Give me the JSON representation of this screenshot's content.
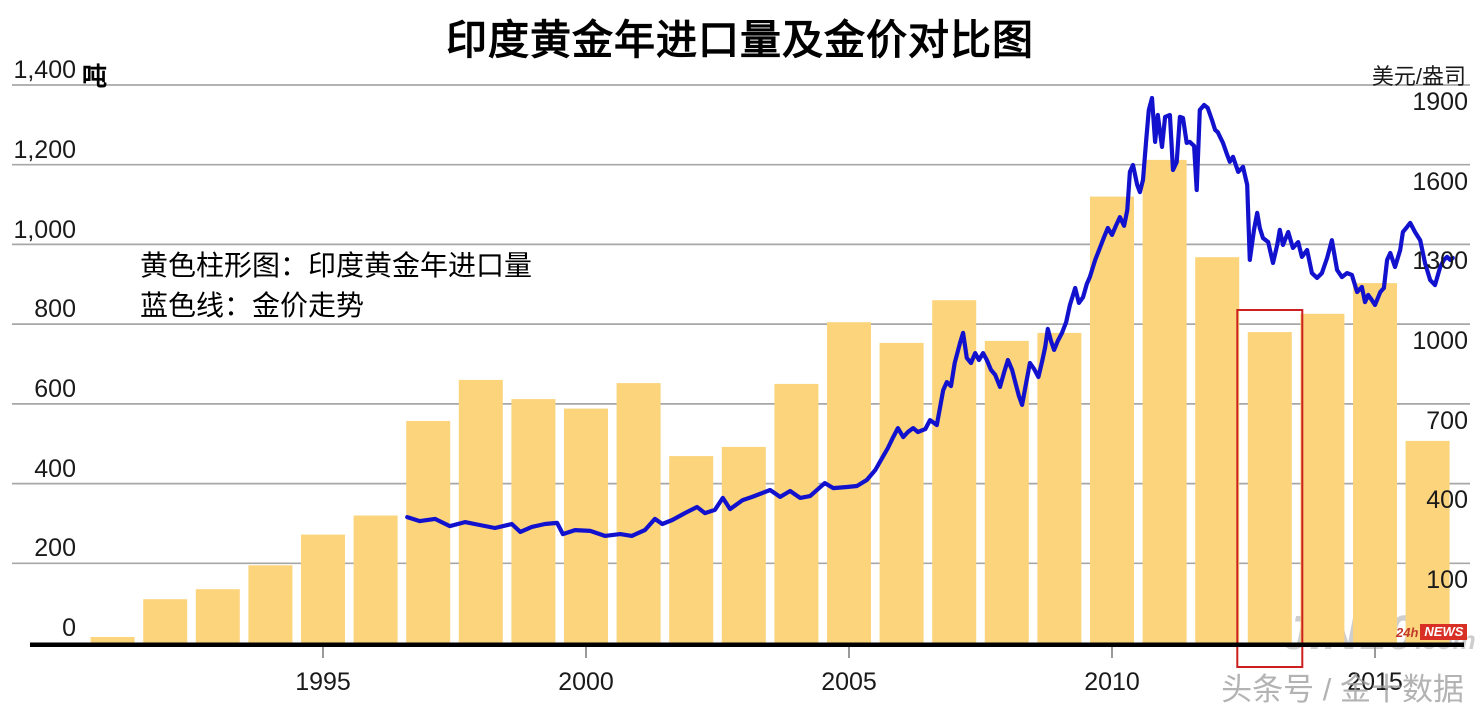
{
  "title": "印度黄金年进口量及金价对比图",
  "left_axis": {
    "unit": "吨",
    "ticks": [
      "1,400",
      "1,200",
      "1,000",
      "800",
      "600",
      "400",
      "200",
      "0"
    ]
  },
  "right_axis": {
    "unit": "美元/盎司",
    "ticks": [
      "1900",
      "1600",
      "1300",
      "1000",
      "700",
      "400",
      "100"
    ]
  },
  "x_axis": {
    "labels": [
      "1995",
      "2000",
      "2005",
      "2010",
      "2015"
    ]
  },
  "legend": {
    "bar_label": "黄色柱形图：印度黄金年进口量",
    "line_label": "蓝色线：金价走势"
  },
  "watermark": {
    "brand": "JIN10",
    "domain": ".com",
    "badge_hours": "24h",
    "badge_news": "NEWS",
    "caption": "头条号 / 金十数据"
  },
  "colors": {
    "bar": "#FBD47C",
    "line": "#1212CE",
    "grid": "#A7A7A7",
    "axis": "#000000",
    "highlight": "#CC2020",
    "watermark": "#C3C3C3"
  },
  "chart_data": {
    "type": "bar+line dual-axis",
    "title": "印度黄金年进口量及金价对比图",
    "bar_series": {
      "name": "印度黄金年进口量",
      "unit": "吨",
      "categories": [
        1991,
        1992,
        1993,
        1994,
        1995,
        1996,
        1997,
        1998,
        1999,
        2000,
        2001,
        2002,
        2003,
        2004,
        2005,
        2006,
        2007,
        2008,
        2009,
        2010,
        2011,
        2012,
        2013,
        2014,
        2015,
        2016
      ],
      "values": [
        15,
        110,
        135,
        195,
        272,
        320,
        557,
        660,
        612,
        588,
        652,
        469,
        492,
        650,
        805,
        753,
        860,
        758,
        778,
        1120,
        1212,
        968,
        780,
        826,
        903,
        507
      ]
    },
    "line_series": {
      "name": "金价走势",
      "unit": "美元/盎司",
      "points": [
        [
          1996.6,
          274
        ],
        [
          1996.84,
          259
        ],
        [
          1997.13,
          267
        ],
        [
          1997.41,
          240
        ],
        [
          1997.7,
          255
        ],
        [
          1997.98,
          244
        ],
        [
          1998.27,
          233
        ],
        [
          1998.59,
          248
        ],
        [
          1998.75,
          218
        ],
        [
          1998.97,
          237
        ],
        [
          1999.22,
          248
        ],
        [
          1999.45,
          252
        ],
        [
          1999.56,
          210
        ],
        [
          1999.79,
          225
        ],
        [
          2000.08,
          222
        ],
        [
          2000.36,
          203
        ],
        [
          2000.65,
          210
        ],
        [
          2000.87,
          203
        ],
        [
          2001.12,
          225
        ],
        [
          2001.31,
          267
        ],
        [
          2001.45,
          248
        ],
        [
          2001.64,
          263
        ],
        [
          2001.88,
          289
        ],
        [
          2002.11,
          312
        ],
        [
          2002.26,
          289
        ],
        [
          2002.45,
          301
        ],
        [
          2002.6,
          346
        ],
        [
          2002.74,
          304
        ],
        [
          2002.98,
          338
        ],
        [
          2003.16,
          350
        ],
        [
          2003.31,
          361
        ],
        [
          2003.5,
          376
        ],
        [
          2003.69,
          350
        ],
        [
          2003.88,
          372
        ],
        [
          2004.07,
          346
        ],
        [
          2004.26,
          353
        ],
        [
          2004.54,
          402
        ],
        [
          2004.7,
          383
        ],
        [
          2004.96,
          387
        ],
        [
          2005.15,
          391
        ],
        [
          2005.34,
          414
        ],
        [
          2005.5,
          451
        ],
        [
          2005.63,
          496
        ],
        [
          2005.74,
          534
        ],
        [
          2005.84,
          575
        ],
        [
          2005.93,
          609
        ],
        [
          2006.03,
          575
        ],
        [
          2006.12,
          594
        ],
        [
          2006.22,
          609
        ],
        [
          2006.31,
          594
        ],
        [
          2006.45,
          605
        ],
        [
          2006.54,
          639
        ],
        [
          2006.67,
          620
        ],
        [
          2006.79,
          752
        ],
        [
          2006.86,
          782
        ],
        [
          2006.94,
          767
        ],
        [
          2007.01,
          854
        ],
        [
          2007.11,
          929
        ],
        [
          2007.17,
          967
        ],
        [
          2007.24,
          873
        ],
        [
          2007.32,
          854
        ],
        [
          2007.4,
          891
        ],
        [
          2007.47,
          865
        ],
        [
          2007.55,
          891
        ],
        [
          2007.62,
          865
        ],
        [
          2007.7,
          828
        ],
        [
          2007.78,
          809
        ],
        [
          2007.87,
          764
        ],
        [
          2007.95,
          820
        ],
        [
          2008.02,
          865
        ],
        [
          2008.1,
          828
        ],
        [
          2008.17,
          775
        ],
        [
          2008.23,
          730
        ],
        [
          2008.29,
          696
        ],
        [
          2008.37,
          782
        ],
        [
          2008.44,
          854
        ],
        [
          2008.52,
          831
        ],
        [
          2008.6,
          801
        ],
        [
          2008.67,
          858
        ],
        [
          2008.73,
          914
        ],
        [
          2008.78,
          982
        ],
        [
          2008.84,
          937
        ],
        [
          2008.9,
          903
        ],
        [
          2008.97,
          937
        ],
        [
          2009.05,
          967
        ],
        [
          2009.13,
          1008
        ],
        [
          2009.2,
          1072
        ],
        [
          2009.3,
          1136
        ],
        [
          2009.37,
          1080
        ],
        [
          2009.45,
          1102
        ],
        [
          2009.52,
          1151
        ],
        [
          2009.58,
          1178
        ],
        [
          2009.68,
          1242
        ],
        [
          2009.77,
          1287
        ],
        [
          2009.85,
          1328
        ],
        [
          2009.92,
          1362
        ],
        [
          2010.0,
          1336
        ],
        [
          2010.08,
          1373
        ],
        [
          2010.15,
          1403
        ],
        [
          2010.23,
          1370
        ],
        [
          2010.29,
          1430
        ],
        [
          2010.34,
          1573
        ],
        [
          2010.4,
          1599
        ],
        [
          2010.48,
          1524
        ],
        [
          2010.53,
          1497
        ],
        [
          2010.59,
          1543
        ],
        [
          2010.65,
          1693
        ],
        [
          2010.7,
          1806
        ],
        [
          2010.76,
          1851
        ],
        [
          2010.82,
          1686
        ],
        [
          2010.87,
          1787
        ],
        [
          2010.95,
          1667
        ],
        [
          2011.01,
          1780
        ],
        [
          2011.1,
          1787
        ],
        [
          2011.16,
          1580
        ],
        [
          2011.23,
          1610
        ],
        [
          2011.29,
          1780
        ],
        [
          2011.35,
          1776
        ],
        [
          2011.42,
          1682
        ],
        [
          2011.48,
          1686
        ],
        [
          2011.56,
          1671
        ],
        [
          2011.61,
          1505
        ],
        [
          2011.67,
          1806
        ],
        [
          2011.75,
          1825
        ],
        [
          2011.82,
          1814
        ],
        [
          2011.9,
          1769
        ],
        [
          2011.96,
          1731
        ],
        [
          2012.01,
          1723
        ],
        [
          2012.11,
          1682
        ],
        [
          2012.19,
          1637
        ],
        [
          2012.24,
          1611
        ],
        [
          2012.3,
          1630
        ],
        [
          2012.4,
          1573
        ],
        [
          2012.49,
          1592
        ],
        [
          2012.57,
          1524
        ],
        [
          2012.62,
          1242
        ],
        [
          2012.7,
          1355
        ],
        [
          2012.76,
          1419
        ],
        [
          2012.81,
          1362
        ],
        [
          2012.87,
          1324
        ],
        [
          2012.97,
          1309
        ],
        [
          2013.06,
          1230
        ],
        [
          2013.14,
          1298
        ],
        [
          2013.19,
          1355
        ],
        [
          2013.25,
          1298
        ],
        [
          2013.35,
          1347
        ],
        [
          2013.44,
          1287
        ],
        [
          2013.54,
          1309
        ],
        [
          2013.61,
          1253
        ],
        [
          2013.71,
          1279
        ],
        [
          2013.8,
          1192
        ],
        [
          2013.9,
          1174
        ],
        [
          2013.99,
          1192
        ],
        [
          2014.09,
          1249
        ],
        [
          2014.18,
          1316
        ],
        [
          2014.28,
          1204
        ],
        [
          2014.37,
          1177
        ],
        [
          2014.47,
          1192
        ],
        [
          2014.56,
          1185
        ],
        [
          2014.66,
          1121
        ],
        [
          2014.75,
          1140
        ],
        [
          2014.81,
          1083
        ],
        [
          2014.87,
          1110
        ],
        [
          2014.94,
          1091
        ],
        [
          2015.0,
          1072
        ],
        [
          2015.1,
          1121
        ],
        [
          2015.17,
          1136
        ],
        [
          2015.23,
          1242
        ],
        [
          2015.29,
          1268
        ],
        [
          2015.38,
          1215
        ],
        [
          2015.48,
          1279
        ],
        [
          2015.53,
          1347
        ],
        [
          2015.61,
          1366
        ],
        [
          2015.67,
          1381
        ],
        [
          2015.76,
          1347
        ],
        [
          2015.86,
          1316
        ],
        [
          2015.95,
          1230
        ],
        [
          2016.05,
          1166
        ],
        [
          2016.14,
          1147
        ],
        [
          2016.24,
          1215
        ],
        [
          2016.31,
          1242
        ],
        [
          2016.37,
          1253
        ],
        [
          2016.43,
          1242
        ],
        [
          2016.48,
          1249
        ]
      ]
    },
    "left_axis": {
      "label": "吨",
      "range": [
        0,
        1400
      ],
      "tick_step": 200
    },
    "right_axis": {
      "label": "美元/盎司",
      "ticks": [
        100,
        400,
        700,
        1000,
        1300,
        1600,
        1900
      ]
    },
    "x_axis": {
      "tick_years": [
        1995,
        2000,
        2005,
        2010,
        2015
      ],
      "range": [
        1990.5,
        2017.0
      ]
    },
    "highlight_box": {
      "year": 2013,
      "style": "red outline rectangle around 2013 bar"
    },
    "grid": "horizontal only",
    "legend_position": "upper-left text block"
  }
}
